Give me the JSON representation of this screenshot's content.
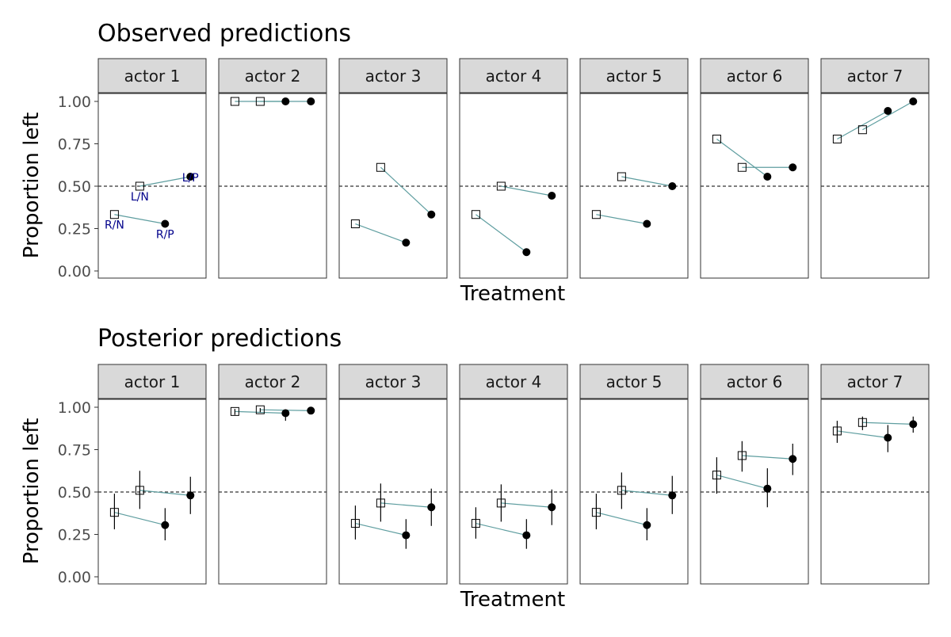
{
  "chart_data": [
    {
      "type": "scatter",
      "title": "Observed predictions",
      "xlabel": "Treatment",
      "ylabel": "Proportion left",
      "ylim": [
        0,
        1.1
      ],
      "y_ticks": [
        "0.00",
        "0.25",
        "0.50",
        "0.75",
        "1.00"
      ],
      "reference_line": 0.5,
      "treatments": [
        "R/N",
        "L/N",
        "R/P",
        "L/P"
      ],
      "point_labels_panel": "actor 1",
      "grid": false,
      "facets": [
        {
          "actor": "actor 1",
          "values": [
            0.333,
            0.5,
            0.278,
            0.556
          ]
        },
        {
          "actor": "actor 2",
          "values": [
            1.0,
            1.0,
            1.0,
            1.0
          ]
        },
        {
          "actor": "actor 3",
          "values": [
            0.278,
            0.611,
            0.167,
            0.333
          ]
        },
        {
          "actor": "actor 4",
          "values": [
            0.333,
            0.5,
            0.111,
            0.444
          ]
        },
        {
          "actor": "actor 5",
          "values": [
            0.333,
            0.556,
            0.278,
            0.5
          ]
        },
        {
          "actor": "actor 6",
          "values": [
            0.778,
            0.611,
            0.556,
            0.611
          ]
        },
        {
          "actor": "actor 7",
          "values": [
            0.778,
            0.833,
            0.944,
            1.0
          ]
        }
      ]
    },
    {
      "type": "scatter",
      "title": "Posterior predictions",
      "xlabel": "Treatment",
      "ylabel": "Proportion left",
      "ylim": [
        0,
        1.1
      ],
      "y_ticks": [
        "0.00",
        "0.25",
        "0.50",
        "0.75",
        "1.00"
      ],
      "reference_line": 0.5,
      "treatments": [
        "R/N",
        "L/N",
        "R/P",
        "L/P"
      ],
      "grid": false,
      "facets": [
        {
          "actor": "actor 1",
          "values": [
            0.38,
            0.51,
            0.305,
            0.48
          ],
          "lower": [
            0.28,
            0.4,
            0.215,
            0.37
          ],
          "upper": [
            0.49,
            0.625,
            0.405,
            0.59
          ]
        },
        {
          "actor": "actor 2",
          "values": [
            0.975,
            0.985,
            0.965,
            0.98
          ],
          "lower": [
            0.955,
            0.97,
            0.92,
            0.965
          ],
          "upper": [
            0.99,
            0.995,
            0.985,
            0.995
          ]
        },
        {
          "actor": "actor 3",
          "values": [
            0.315,
            0.435,
            0.245,
            0.41
          ],
          "lower": [
            0.22,
            0.325,
            0.165,
            0.3
          ],
          "upper": [
            0.42,
            0.55,
            0.34,
            0.52
          ]
        },
        {
          "actor": "actor 4",
          "values": [
            0.315,
            0.435,
            0.245,
            0.41
          ],
          "lower": [
            0.225,
            0.325,
            0.165,
            0.305
          ],
          "upper": [
            0.41,
            0.545,
            0.34,
            0.515
          ]
        },
        {
          "actor": "actor 5",
          "values": [
            0.38,
            0.51,
            0.305,
            0.48
          ],
          "lower": [
            0.28,
            0.4,
            0.215,
            0.37
          ],
          "upper": [
            0.49,
            0.615,
            0.405,
            0.595
          ]
        },
        {
          "actor": "actor 6",
          "values": [
            0.6,
            0.715,
            0.52,
            0.695
          ],
          "lower": [
            0.49,
            0.62,
            0.41,
            0.6
          ],
          "upper": [
            0.705,
            0.8,
            0.64,
            0.785
          ]
        },
        {
          "actor": "actor 7",
          "values": [
            0.86,
            0.91,
            0.82,
            0.9
          ],
          "lower": [
            0.79,
            0.865,
            0.735,
            0.85
          ],
          "upper": [
            0.92,
            0.945,
            0.895,
            0.945
          ]
        }
      ]
    }
  ],
  "style": {
    "line_color": "#5f9ea0",
    "point_color": "#000000",
    "strip_fill": "#d9d9d9",
    "panel_border": "#333333",
    "label_color": "#00008b",
    "tick_text_color": "#4d4d4d"
  }
}
